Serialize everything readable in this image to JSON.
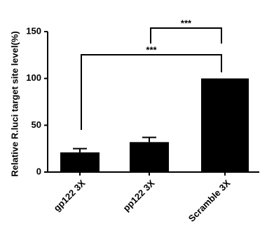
{
  "chart_data": {
    "type": "bar",
    "y_label": "Relative R.luci target site level(%)",
    "categories": [
      "gp122 3X",
      "pp122 3X",
      "Scramble 3X"
    ],
    "values": [
      21,
      32,
      100
    ],
    "errors": [
      4,
      5,
      0
    ],
    "color": "#000000",
    "ylim": [
      0,
      150
    ],
    "yticks": [
      0,
      50,
      100,
      150
    ],
    "annotations": [
      "***",
      "***"
    ]
  }
}
